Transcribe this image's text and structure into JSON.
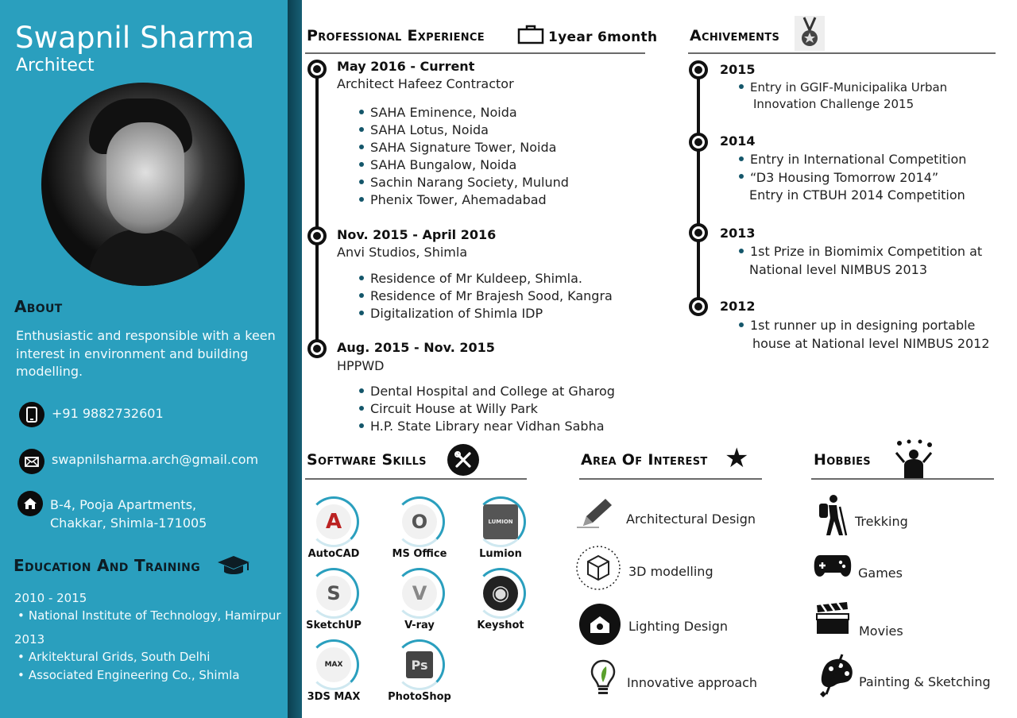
{
  "profile": {
    "name": "Swapnil Sharma",
    "role": "Architect"
  },
  "about": {
    "heading": "About",
    "text": "Enthusiastic and responsible with a keen interest in environment and building modelling."
  },
  "contact": {
    "phone": "+91 9882732601",
    "email": "swapnilsharma.arch@gmail.com",
    "address_line1": "B-4, Pooja Apartments,",
    "address_line2": "Chakkar, Shimla-171005"
  },
  "education": {
    "heading": "Education And Training",
    "groups": [
      {
        "years": "2010 - 2015",
        "items": [
          "National Institute of Technology, Hamirpur"
        ]
      },
      {
        "years": "2013",
        "items": [
          "Arkitektural Grids, South Delhi",
          "Associated Engineering Co., Shimla"
        ]
      }
    ]
  },
  "experience": {
    "heading": "Professional Experience",
    "duration": "1year 6month",
    "jobs": [
      {
        "date": "May 2016 - Current",
        "org": "Architect Hafeez Contractor",
        "projects": [
          "SAHA Eminence, Noida",
          "SAHA Lotus, Noida",
          "SAHA Signature Tower, Noida",
          "SAHA Bungalow, Noida",
          "Sachin Narang Society, Mulund",
          "Phenix Tower, Ahemadabad"
        ]
      },
      {
        "date": "Nov. 2015 - April 2016",
        "org": "Anvi Studios, Shimla",
        "projects": [
          "Residence of Mr Kuldeep, Shimla.",
          "Residence of Mr Brajesh Sood, Kangra",
          "Digitalization of Shimla IDP"
        ]
      },
      {
        "date": "Aug. 2015 - Nov. 2015",
        "org": "HPPWD",
        "projects": [
          "Dental Hospital and College at Gharog",
          "Circuit House at Willy Park",
          "H.P. State Library near Vidhan Sabha"
        ]
      }
    ]
  },
  "achievements": {
    "heading": "Achivements",
    "entries": [
      {
        "year": "2015",
        "lines": [
          "Entry in GGIF-Municipalika Urban",
          "Innovation Challenge 2015"
        ]
      },
      {
        "year": "2014",
        "lines": [
          "Entry in International Competition",
          "“D3 Housing Tomorrow 2014”",
          "Entry in CTBUH 2014  Competition"
        ]
      },
      {
        "year": "2013",
        "lines": [
          "1st Prize in Biomimix Competition at",
          "National level NIMBUS 2013"
        ]
      },
      {
        "year": "2012",
        "lines": [
          "1st runner up in designing portable",
          "house at National level  NIMBUS 2012"
        ]
      }
    ]
  },
  "software": {
    "heading": "Software Skills",
    "items": [
      {
        "name": "AutoCAD",
        "glyph": "A"
      },
      {
        "name": "MS Office",
        "glyph": "O"
      },
      {
        "name": "Lumion",
        "glyph": "LUMION"
      },
      {
        "name": "SketchUP",
        "glyph": "S"
      },
      {
        "name": "V-ray",
        "glyph": "V"
      },
      {
        "name": "Keyshot",
        "glyph": "◉"
      },
      {
        "name": "3DS MAX",
        "glyph": "MAX"
      },
      {
        "name": "PhotoShop",
        "glyph": "Ps"
      }
    ]
  },
  "interests": {
    "heading": "Area Of Interest",
    "items": [
      "Architectural Design",
      "3D modelling",
      "Lighting Design",
      "Innovative approach"
    ]
  },
  "hobbies": {
    "heading": "Hobbies",
    "items": [
      "Trekking",
      "Games",
      "Movies",
      "Painting & Sketching"
    ]
  },
  "colors": {
    "sidebar": "#2a9fbe",
    "accent": "#14566a",
    "dark": "#111111"
  }
}
